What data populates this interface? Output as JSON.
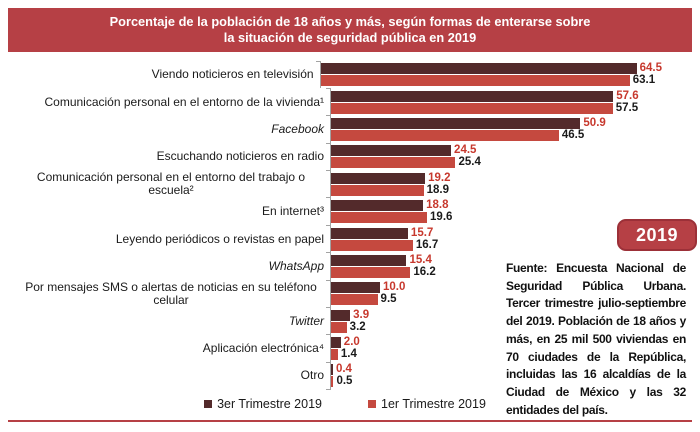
{
  "colors": {
    "band_red": "#b64045",
    "dark_bar": "#532a2b",
    "light_bar": "#c5493f",
    "value_red": "#c7382d",
    "value_black": "#1a1a1a",
    "axis_gray": "#a3a3a3"
  },
  "title": {
    "line1": "Porcentaje de la población de 18 años y más, según formas de enterarse sobre",
    "line2": "la situación de seguridad pública en 2019"
  },
  "year_badge": "2019",
  "source_note": "Fuente: Encuesta Nacional de Seguridad Pública Urbana. Tercer trimestre julio-septiembre del 2019. Población de 18 años y más, en 25 mil 500 viviendas en 70 ciudades de la República, incluidas las 16 alcaldías de la Ciudad de México y las 32 entidades del país.",
  "chart_data": {
    "type": "bar",
    "orientation": "horizontal",
    "title": "Porcentaje de la población de 18 años y más, según formas de enterarse sobre la situación de seguridad pública en 2019",
    "xlim": [
      0,
      66
    ],
    "grid": false,
    "legend_position": "bottom",
    "categories": [
      {
        "label": "Viendo noticieros en televisión",
        "italic": false
      },
      {
        "label": "Comunicación personal en el entorno de la vivienda¹",
        "italic": false
      },
      {
        "label": "Facebook",
        "italic": true
      },
      {
        "label": "Escuchando noticieros en radio",
        "italic": false
      },
      {
        "label": "Comunicación personal en el entorno del trabajo o escuela²",
        "italic": false
      },
      {
        "label": "En internet³",
        "italic": false
      },
      {
        "label": "Leyendo periódicos o revistas en papel",
        "italic": false
      },
      {
        "label": "WhatsApp",
        "italic": true
      },
      {
        "label": "Por mensajes SMS o alertas de noticias en su teléfono celular",
        "italic": false
      },
      {
        "label": "Twitter",
        "italic": true
      },
      {
        "label": "Aplicación electrónica⁴",
        "italic": false
      },
      {
        "label": "Otro",
        "italic": false
      }
    ],
    "series": [
      {
        "name": "3er Trimestre 2019",
        "color": "#532a2b",
        "value_label_color": "#c7382d",
        "values": [
          64.5,
          57.6,
          50.9,
          24.5,
          19.2,
          18.8,
          15.7,
          15.4,
          10.0,
          3.9,
          2.0,
          0.4
        ]
      },
      {
        "name": "1er Trimestre 2019",
        "color": "#c5493f",
        "value_label_color": "#1a1a1a",
        "values": [
          63.1,
          57.5,
          46.5,
          25.4,
          18.9,
          19.6,
          16.7,
          16.2,
          9.5,
          3.2,
          1.4,
          0.5
        ]
      }
    ]
  }
}
